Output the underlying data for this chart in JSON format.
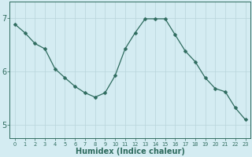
{
  "x": [
    0,
    1,
    2,
    3,
    4,
    5,
    6,
    7,
    8,
    9,
    10,
    11,
    12,
    13,
    14,
    15,
    16,
    17,
    18,
    19,
    20,
    21,
    22,
    23
  ],
  "y": [
    6.88,
    6.72,
    6.52,
    6.42,
    6.05,
    5.88,
    5.72,
    5.6,
    5.52,
    5.6,
    5.92,
    6.42,
    6.72,
    6.98,
    6.98,
    6.98,
    6.68,
    6.38,
    6.18,
    5.88,
    5.68,
    5.62,
    5.32,
    5.1
  ],
  "line_color": "#2e6b5e",
  "marker": "D",
  "marker_size": 2.5,
  "bg_color": "#d4ecf2",
  "grid_color": "#b8d4da",
  "tick_color": "#2e6b5e",
  "xlabel": "Humidex (Indice chaleur)",
  "xlabel_fontsize": 7,
  "yticks": [
    5,
    6,
    7
  ],
  "ylim": [
    4.75,
    7.3
  ],
  "xlim": [
    -0.5,
    23.5
  ],
  "xtick_labels": [
    "0",
    "1",
    "2",
    "3",
    "4",
    "5",
    "6",
    "7",
    "8",
    "9",
    "10",
    "11",
    "12",
    "13",
    "14",
    "15",
    "16",
    "17",
    "18",
    "19",
    "20",
    "21",
    "22",
    "23"
  ],
  "axes_color": "#2e6b5e",
  "ylabel_fontsize": 7,
  "xtick_fontsize": 4.8,
  "ytick_fontsize": 7
}
